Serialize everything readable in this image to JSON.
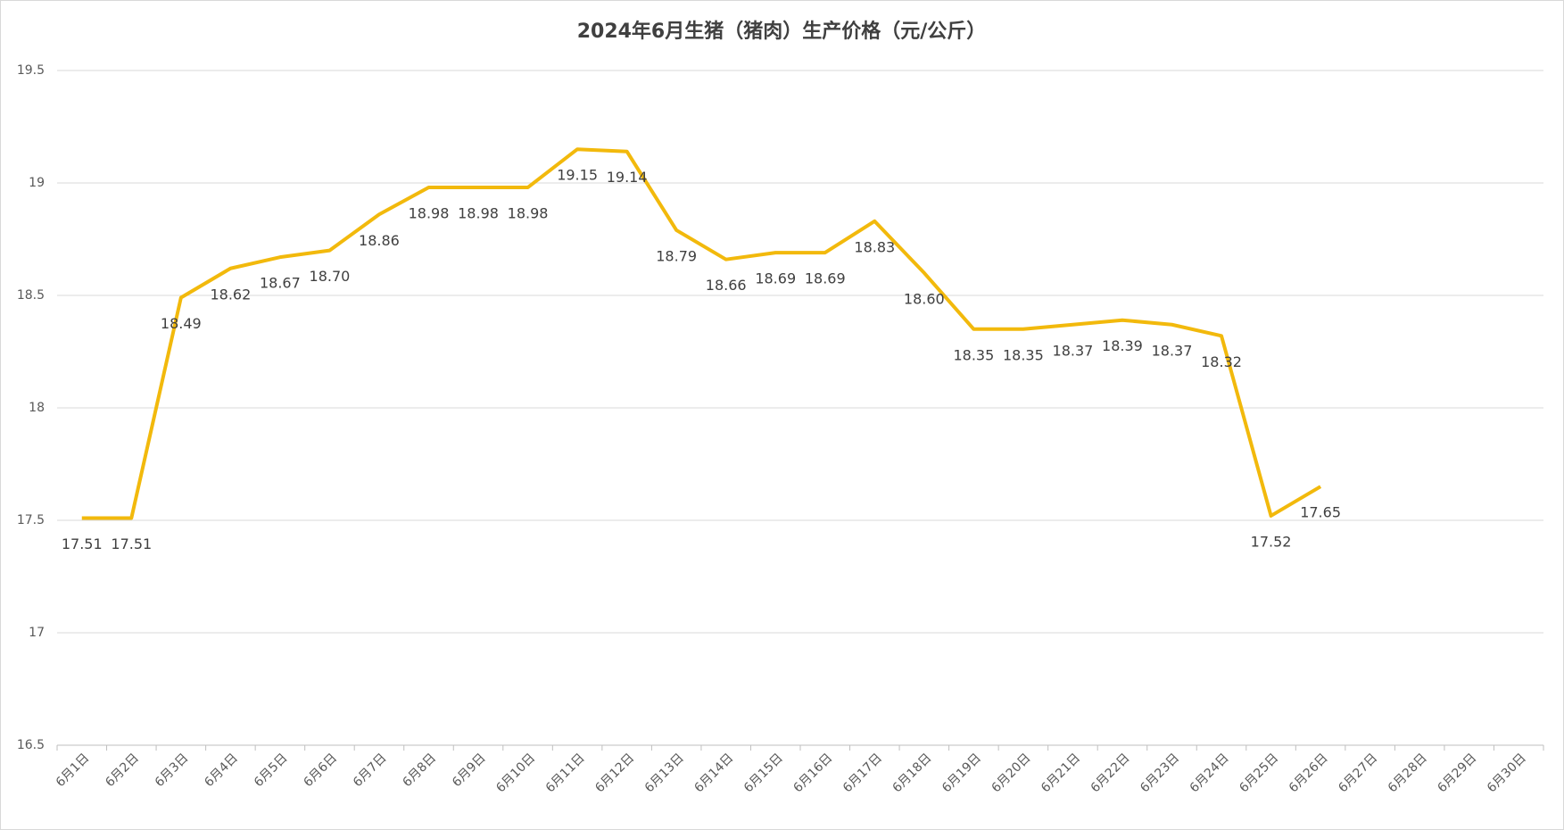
{
  "chart_data": {
    "type": "line",
    "title": "2024年6月生猪（猪肉）生产价格（元/公斤）",
    "categories": [
      "6月1日",
      "6月2日",
      "6月3日",
      "6月4日",
      "6月5日",
      "6月6日",
      "6月7日",
      "6月8日",
      "6月9日",
      "6月10日",
      "6月11日",
      "6月12日",
      "6月13日",
      "6月14日",
      "6月15日",
      "6月16日",
      "6月17日",
      "6月18日",
      "6月19日",
      "6月20日",
      "6月21日",
      "6月22日",
      "6月23日",
      "6月24日",
      "6月25日",
      "6月26日",
      "6月27日",
      "6月28日",
      "6月29日",
      "6月30日"
    ],
    "values": [
      17.51,
      17.51,
      18.49,
      18.62,
      18.67,
      18.7,
      18.86,
      18.98,
      18.98,
      18.98,
      19.15,
      19.14,
      18.79,
      18.66,
      18.69,
      18.69,
      18.83,
      18.6,
      18.35,
      18.35,
      18.37,
      18.39,
      18.37,
      18.32,
      17.52,
      17.65,
      null,
      null,
      null,
      null
    ],
    "value_labels": [
      "17.51",
      "17.51",
      "18.49",
      "18.62",
      "18.67",
      "18.70",
      "18.86",
      "18.98",
      "18.98",
      "18.98",
      "19.15",
      "19.14",
      "18.79",
      "18.66",
      "18.69",
      "18.69",
      "18.83",
      "18.60",
      "18.35",
      "18.35",
      "18.37",
      "18.39",
      "18.37",
      "18.32",
      "17.52",
      "17.65",
      null,
      null,
      null,
      null
    ],
    "color": "#f2b90c",
    "ylim": [
      16.5,
      19.5
    ],
    "yticks": [
      16.5,
      17,
      17.5,
      18,
      18.5,
      19,
      19.5
    ],
    "grid": true
  }
}
